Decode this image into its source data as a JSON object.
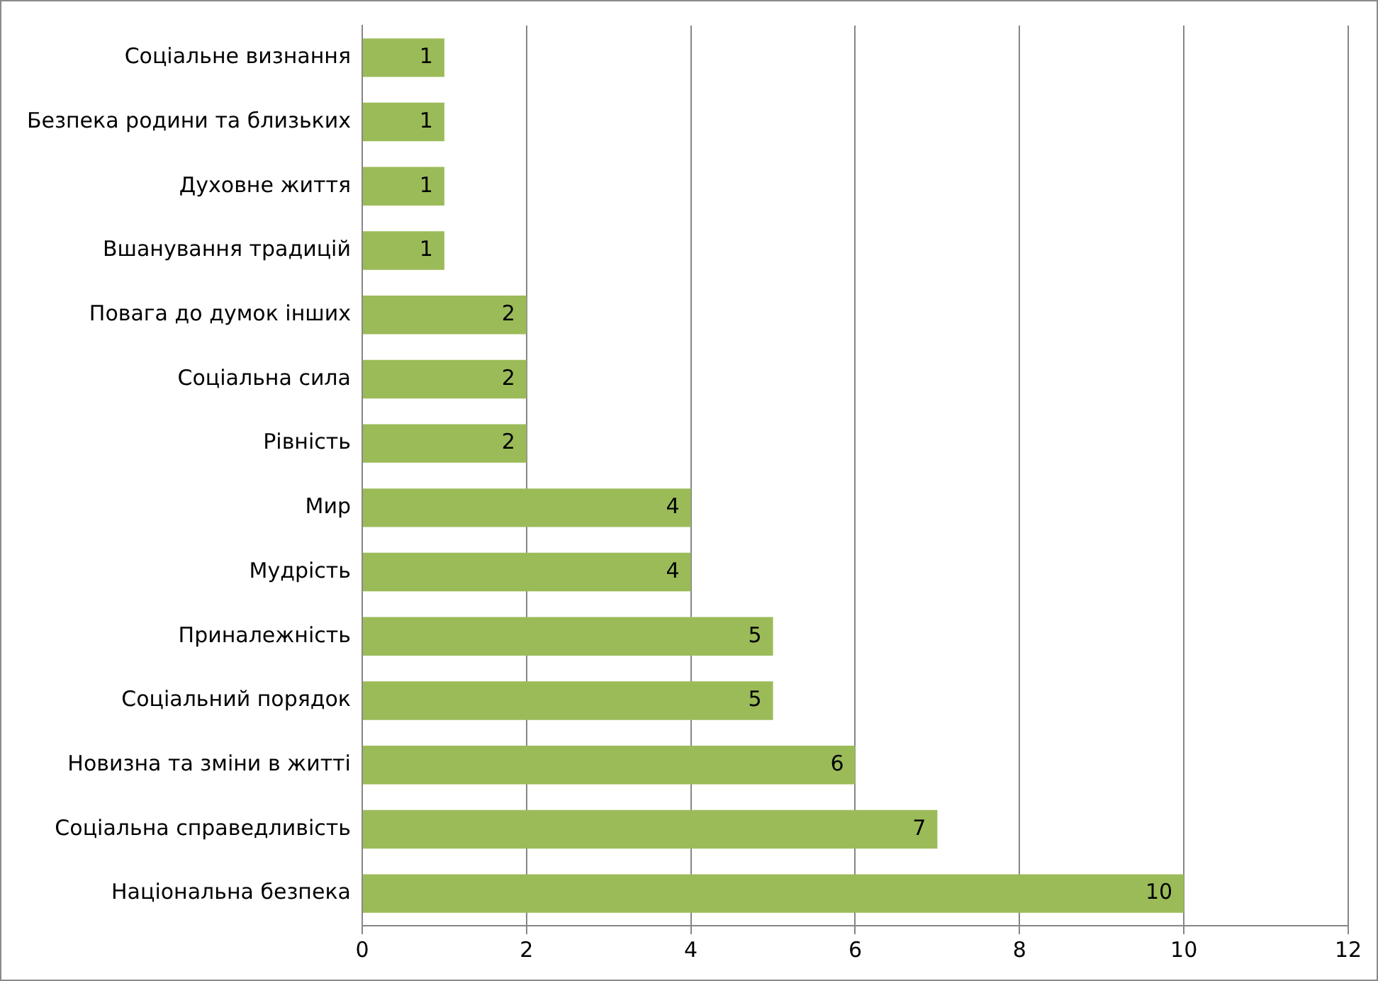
{
  "chart_data": {
    "type": "bar",
    "orientation": "horizontal",
    "categories": [
      "Соціальне визнання",
      "Безпека родини та близьких",
      "Духовне життя",
      "Вшанування традицій",
      "Повага до думок інших",
      "Соціальна сила",
      "Рівність",
      "Мир",
      "Мудрість",
      "Приналежність",
      "Соціальний порядок",
      "Новизна та зміни в житті",
      "Соціальна справедливість",
      "Національна безпека"
    ],
    "values": [
      1,
      1,
      1,
      1,
      2,
      2,
      2,
      4,
      4,
      5,
      5,
      6,
      7,
      10
    ],
    "color": "#9bbb59",
    "xlim": [
      0,
      12
    ],
    "xticks": [
      0,
      2,
      4,
      6,
      8,
      10,
      12
    ],
    "grid": "x",
    "data_labels": true,
    "legend": false
  }
}
